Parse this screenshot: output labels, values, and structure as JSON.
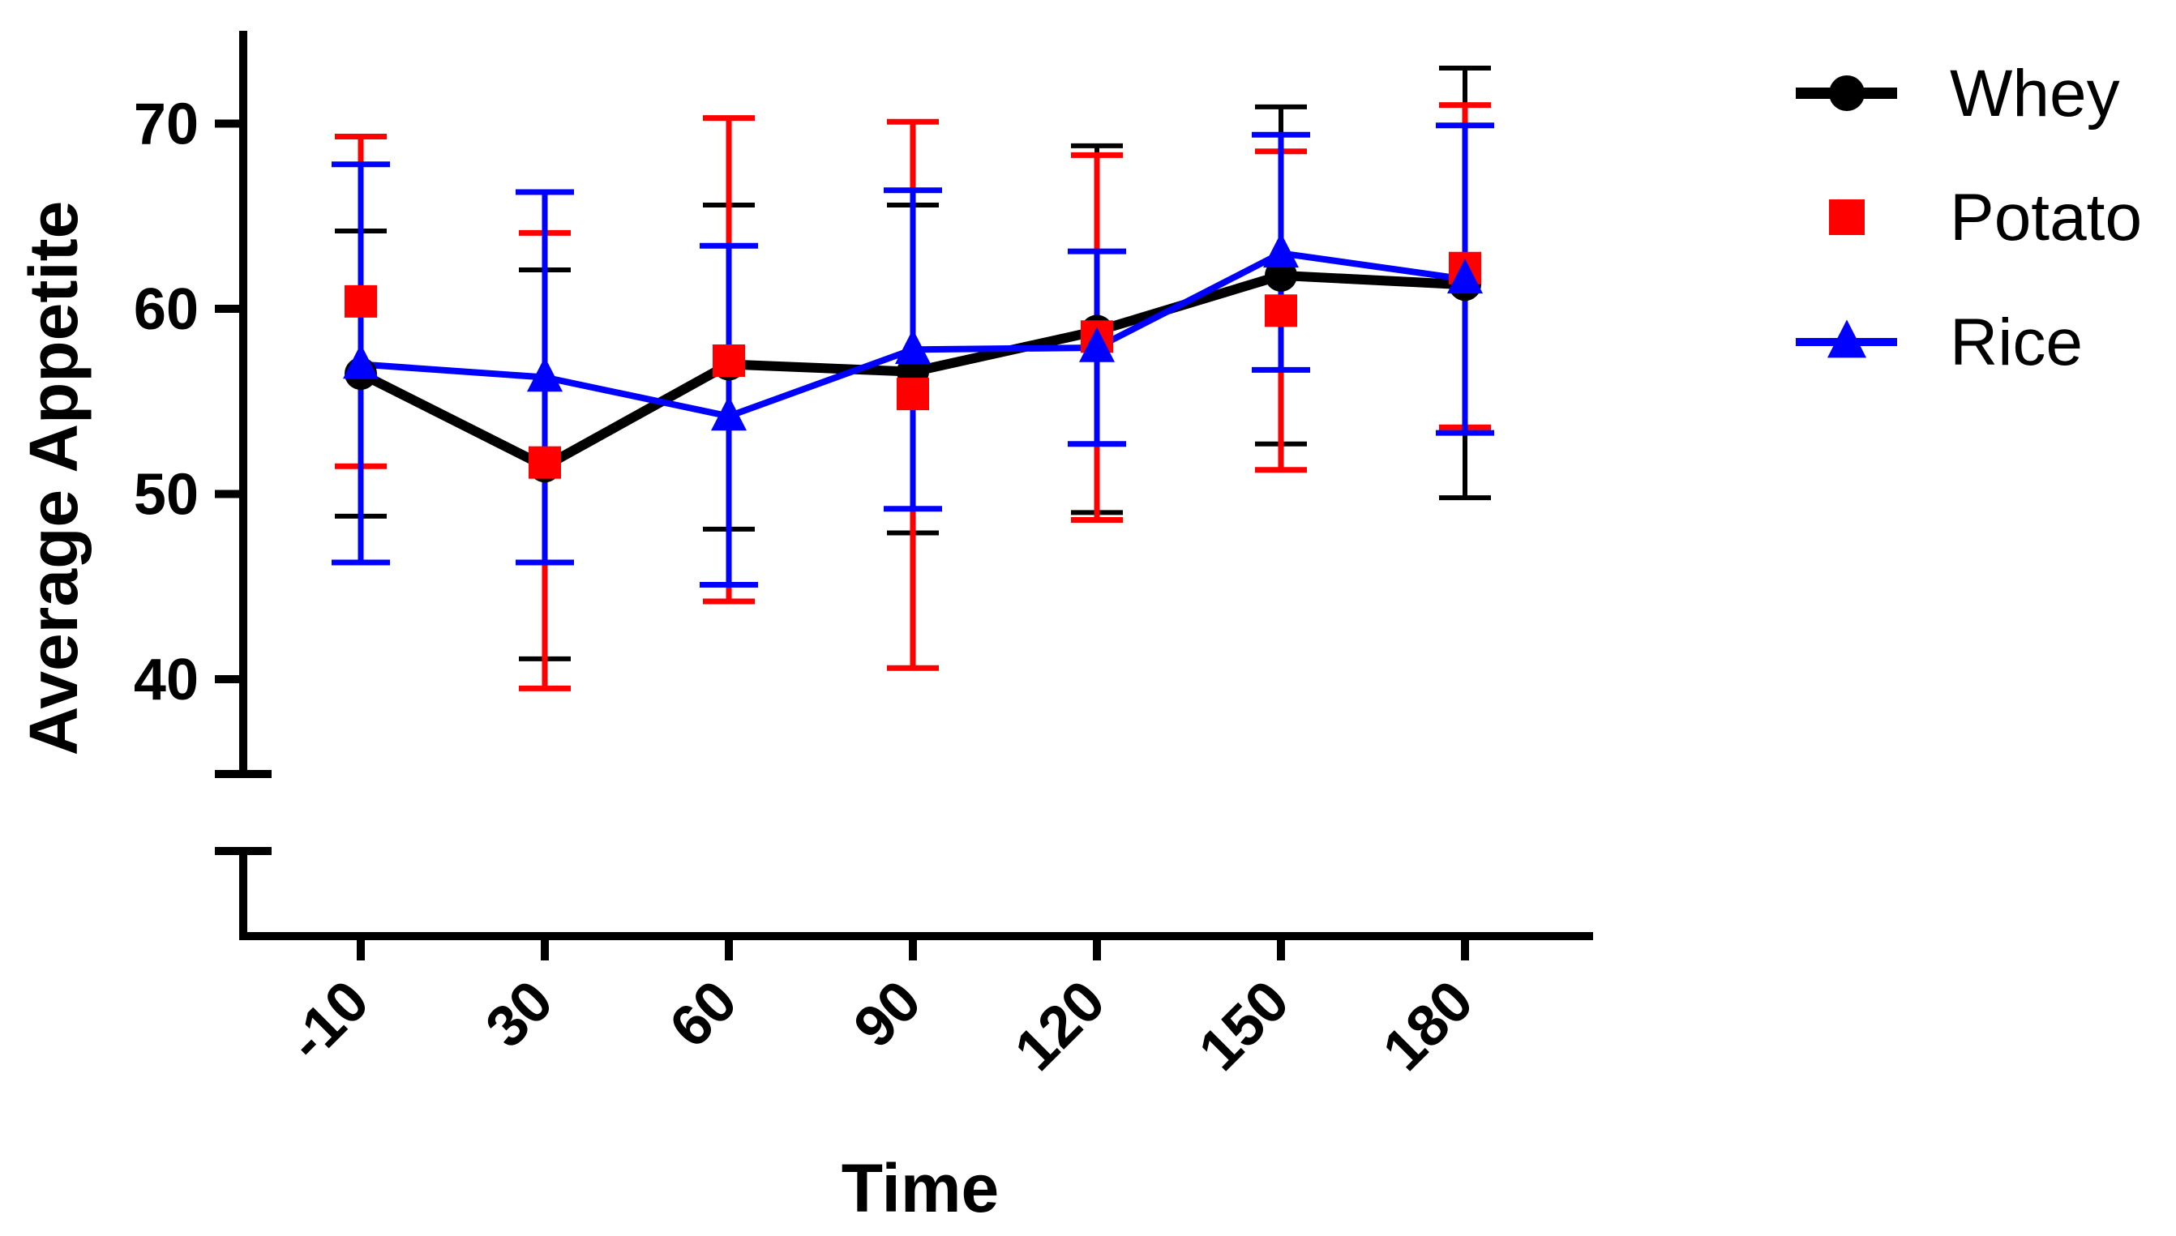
{
  "chart_data": {
    "type": "line",
    "title": "",
    "xlabel": "Time",
    "ylabel": "Average Appetite",
    "categories": [
      "-10",
      "30",
      "60",
      "90",
      "120",
      "150",
      "180"
    ],
    "yticks": [
      "40",
      "50",
      "60",
      "70"
    ],
    "ylim": [
      35,
      74
    ],
    "axis_break": true,
    "grid": false,
    "legend_position": "top-right",
    "series": [
      {
        "name": "Whey",
        "color": "#000000",
        "marker": "circle",
        "values": [
          56.5,
          51.5,
          57.0,
          56.6,
          58.8,
          61.8,
          61.3
        ],
        "err_lower": [
          48.8,
          41.1,
          48.1,
          47.9,
          49.0,
          52.7,
          49.8
        ],
        "err_upper": [
          64.2,
          62.1,
          65.6,
          65.6,
          68.8,
          70.9,
          73.0
        ]
      },
      {
        "name": "Potato",
        "color": "#ff0000",
        "marker": "square",
        "values": [
          60.4,
          51.7,
          57.2,
          55.4,
          58.5,
          59.9,
          62.2
        ],
        "err_lower": [
          51.5,
          39.5,
          44.2,
          40.6,
          48.6,
          51.3,
          53.6
        ],
        "err_upper": [
          69.3,
          64.1,
          70.3,
          70.1,
          68.3,
          68.5,
          71.0
        ]
      },
      {
        "name": "Rice",
        "color": "#0000ff",
        "marker": "triangle",
        "values": [
          57.0,
          56.3,
          54.2,
          57.8,
          57.9,
          63.0,
          61.6
        ],
        "err_lower": [
          46.3,
          46.3,
          45.1,
          49.2,
          52.7,
          56.7,
          53.3
        ],
        "err_upper": [
          67.8,
          66.3,
          63.4,
          66.4,
          63.1,
          69.4,
          69.9
        ]
      }
    ]
  }
}
